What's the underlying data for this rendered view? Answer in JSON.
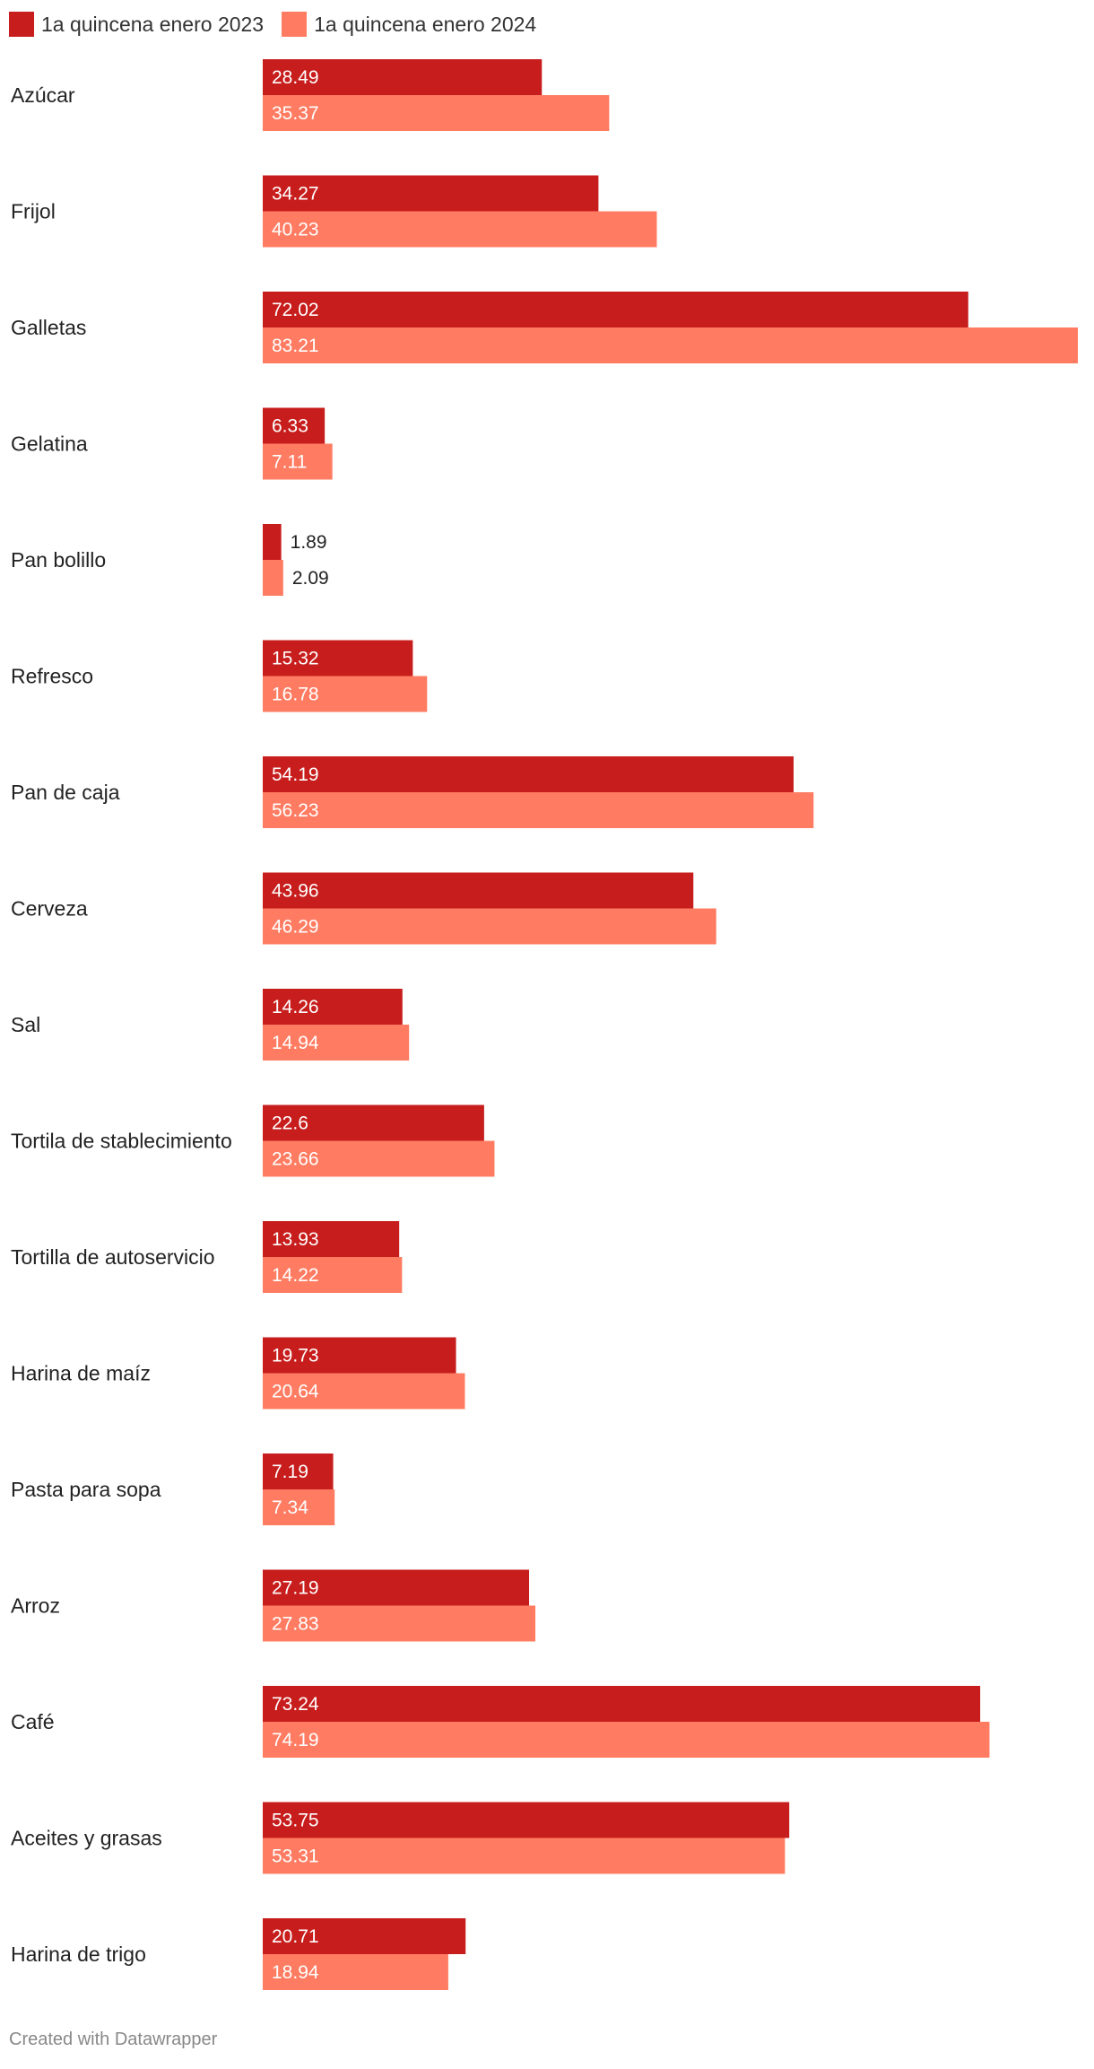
{
  "chart_data": {
    "type": "bar",
    "orientation": "horizontal",
    "categories": [
      "Azúcar",
      "Frijol",
      "Galletas",
      "Gelatina",
      "Pan bolillo",
      "Refresco",
      "Pan de caja",
      "Cerveza",
      "Sal",
      "Tortila de stablecimiento",
      "Tortilla de autoservicio",
      "Harina de maíz",
      "Pasta para sopa",
      "Arroz",
      "Café",
      "Aceites y grasas",
      "Harina de trigo"
    ],
    "series": [
      {
        "name": "1a quincena enero 2023",
        "color": "#c71e1d",
        "values": [
          28.49,
          34.27,
          72.02,
          6.33,
          1.89,
          15.32,
          54.19,
          43.96,
          14.26,
          22.6,
          13.93,
          19.73,
          7.19,
          27.19,
          73.24,
          53.75,
          20.71
        ]
      },
      {
        "name": "1a quincena enero 2024",
        "color": "#ff7c62",
        "values": [
          35.37,
          40.23,
          83.21,
          7.11,
          2.09,
          16.78,
          56.23,
          46.29,
          14.94,
          23.66,
          14.22,
          20.64,
          7.34,
          27.83,
          74.19,
          53.31,
          18.94
        ]
      }
    ],
    "value_labels": {
      "0": [
        "28.49",
        "34.27",
        "72.02",
        "6.33",
        "1.89",
        "15.32",
        "54.19",
        "43.96",
        "14.26",
        "22.6",
        "13.93",
        "19.73",
        "7.19",
        "27.19",
        "73.24",
        "53.75",
        "20.71"
      ],
      "1": [
        "35.37",
        "40.23",
        "83.21",
        "7.11",
        "2.09",
        "16.78",
        "56.23",
        "46.29",
        "14.94",
        "23.66",
        "14.22",
        "20.64",
        "7.34",
        "27.83",
        "74.19",
        "53.31",
        "18.94"
      ]
    },
    "xlim": [
      0,
      83.21
    ],
    "grid": false,
    "legend_position": "top-left"
  },
  "legend": {
    "item_2023": "1a quincena enero 2023",
    "item_2024": "1a quincena enero 2024",
    "color_2023": "#c71e1d",
    "color_2024": "#ff7c62"
  },
  "footer": {
    "credit": "Created with Datawrapper"
  }
}
